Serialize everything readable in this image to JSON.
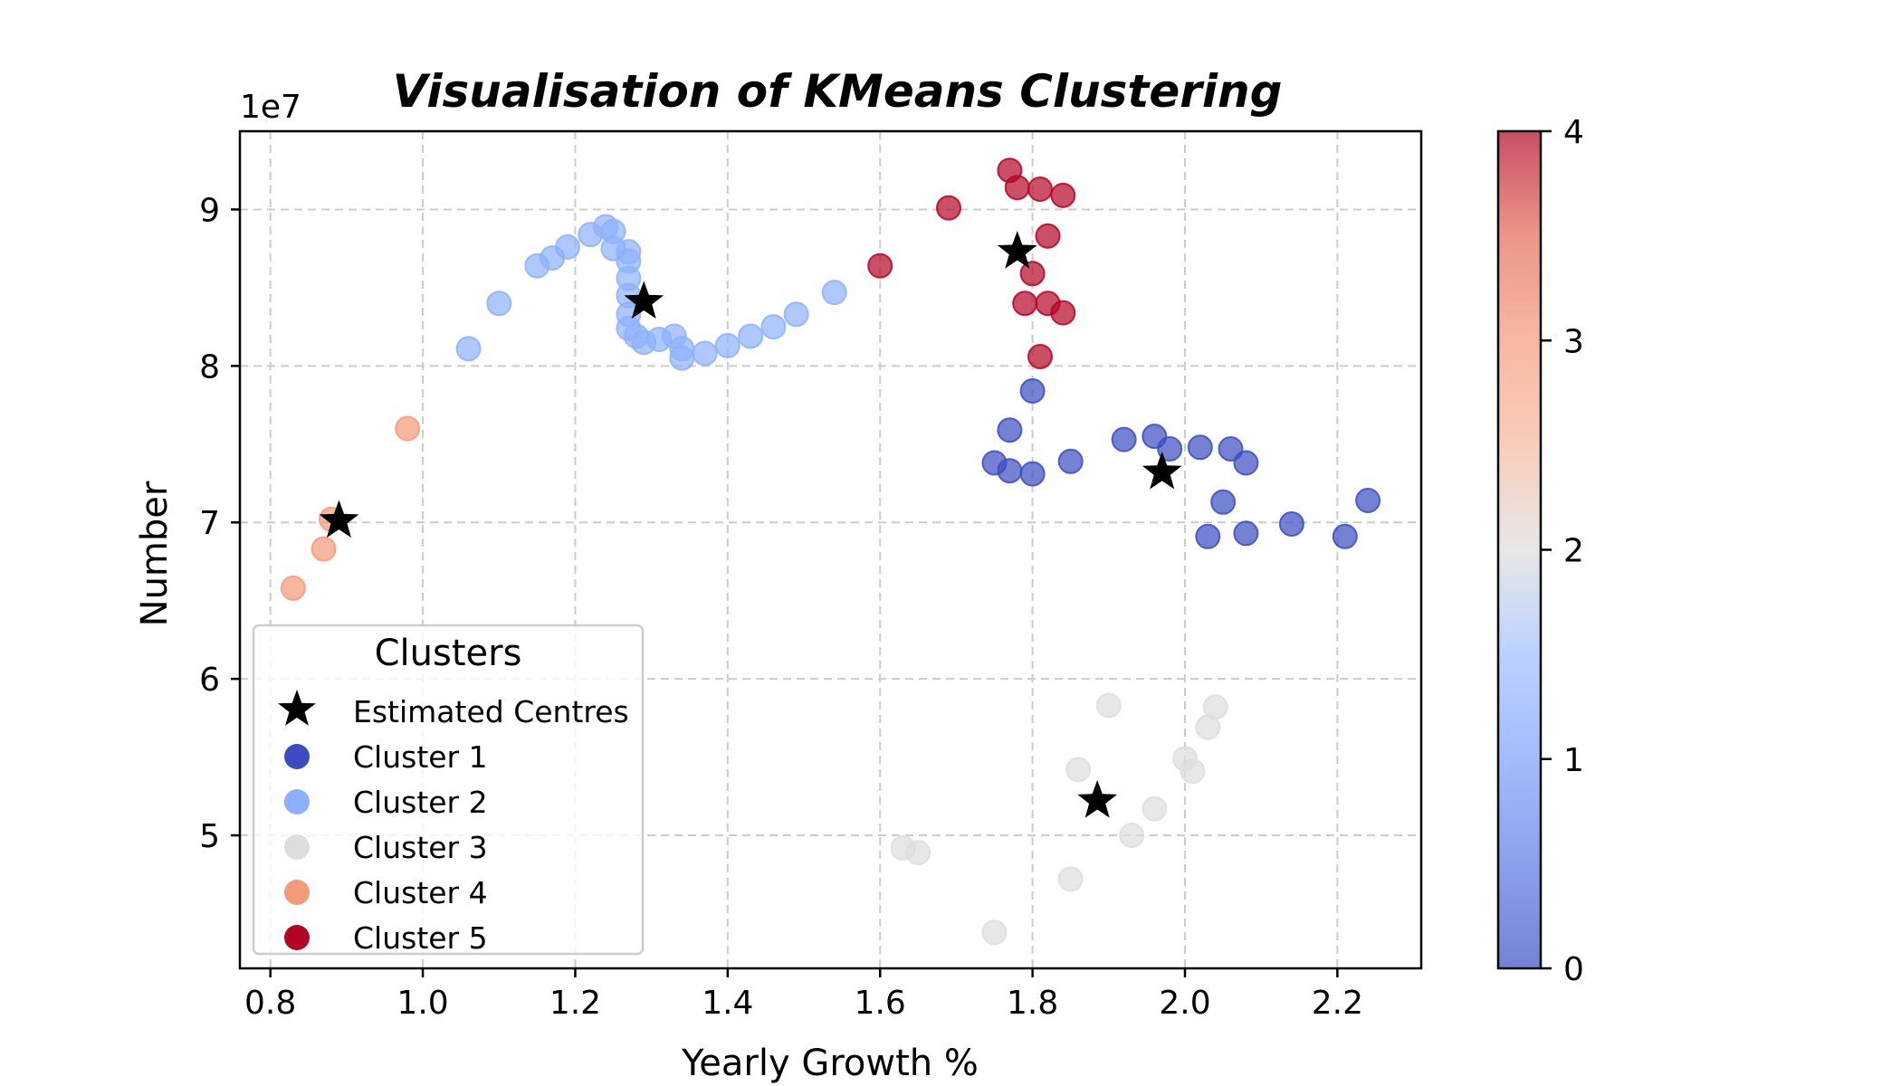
{
  "chart_data": {
    "type": "scatter",
    "title": "Visualisation of KMeans Clustering",
    "xlabel": "Yearly Growth %",
    "ylabel": "Number",
    "y_offset_label": "1e7",
    "xlim": [
      0.76,
      2.31
    ],
    "ylim": [
      4.15,
      9.5
    ],
    "x_ticks": [
      0.8,
      1.0,
      1.2,
      1.4,
      1.6,
      1.8,
      2.0,
      2.2
    ],
    "x_tick_labels": [
      "0.8",
      "1.0",
      "1.2",
      "1.4",
      "1.6",
      "1.8",
      "2.0",
      "2.2"
    ],
    "y_ticks": [
      5,
      6,
      7,
      8,
      9
    ],
    "y_tick_labels": [
      "5",
      "6",
      "7",
      "8",
      "9"
    ],
    "grid": true,
    "grid_style": "dashed",
    "colormap": "coolwarm",
    "colorbar": {
      "range": [
        0,
        4
      ],
      "ticks": [
        0,
        1,
        2,
        3,
        4
      ],
      "tick_labels": [
        "0",
        "1",
        "2",
        "3",
        "4"
      ]
    },
    "series": [
      {
        "name": "Cluster 1",
        "color": "#3b4cc0",
        "points": [
          [
            1.75,
            7.38
          ],
          [
            1.77,
            7.33
          ],
          [
            1.77,
            7.59
          ],
          [
            1.8,
            7.31
          ],
          [
            1.8,
            7.84
          ],
          [
            1.85,
            7.39
          ],
          [
            1.92,
            7.53
          ],
          [
            1.96,
            7.55
          ],
          [
            1.98,
            7.47
          ],
          [
            2.02,
            7.48
          ],
          [
            2.06,
            7.47
          ],
          [
            2.08,
            7.38
          ],
          [
            2.05,
            7.13
          ],
          [
            2.03,
            6.91
          ],
          [
            2.08,
            6.93
          ],
          [
            2.14,
            6.99
          ],
          [
            2.21,
            6.91
          ],
          [
            2.24,
            7.14
          ]
        ]
      },
      {
        "name": "Cluster 2",
        "color": "#8db0fe",
        "points": [
          [
            1.06,
            8.11
          ],
          [
            1.1,
            8.4
          ],
          [
            1.15,
            8.64
          ],
          [
            1.17,
            8.69
          ],
          [
            1.19,
            8.76
          ],
          [
            1.22,
            8.84
          ],
          [
            1.24,
            8.89
          ],
          [
            1.25,
            8.86
          ],
          [
            1.25,
            8.75
          ],
          [
            1.27,
            8.73
          ],
          [
            1.27,
            8.67
          ],
          [
            1.27,
            8.56
          ],
          [
            1.27,
            8.45
          ],
          [
            1.27,
            8.33
          ],
          [
            1.27,
            8.24
          ],
          [
            1.28,
            8.19
          ],
          [
            1.29,
            8.15
          ],
          [
            1.31,
            8.17
          ],
          [
            1.33,
            8.19
          ],
          [
            1.34,
            8.11
          ],
          [
            1.34,
            8.05
          ],
          [
            1.37,
            8.08
          ],
          [
            1.4,
            8.13
          ],
          [
            1.43,
            8.19
          ],
          [
            1.46,
            8.25
          ],
          [
            1.49,
            8.33
          ],
          [
            1.54,
            8.47
          ]
        ]
      },
      {
        "name": "Cluster 3",
        "color": "#dddddd",
        "points": [
          [
            1.9,
            5.83
          ],
          [
            2.04,
            5.82
          ],
          [
            2.03,
            5.69
          ],
          [
            2.0,
            5.49
          ],
          [
            2.01,
            5.41
          ],
          [
            1.86,
            5.42
          ],
          [
            1.96,
            5.17
          ],
          [
            1.93,
            5.0
          ],
          [
            1.63,
            4.92
          ],
          [
            1.65,
            4.89
          ],
          [
            1.85,
            4.72
          ],
          [
            1.75,
            4.38
          ]
        ]
      },
      {
        "name": "Cluster 4",
        "color": "#f49a7b",
        "points": [
          [
            0.98,
            7.6
          ],
          [
            0.88,
            7.02
          ],
          [
            0.87,
            6.83
          ],
          [
            0.83,
            6.58
          ]
        ]
      },
      {
        "name": "Cluster 5",
        "color": "#b40426",
        "points": [
          [
            1.77,
            9.25
          ],
          [
            1.78,
            9.14
          ],
          [
            1.81,
            9.13
          ],
          [
            1.84,
            9.09
          ],
          [
            1.69,
            9.01
          ],
          [
            1.82,
            8.83
          ],
          [
            1.6,
            8.64
          ],
          [
            1.8,
            8.59
          ],
          [
            1.79,
            8.4
          ],
          [
            1.82,
            8.4
          ],
          [
            1.84,
            8.34
          ],
          [
            1.81,
            8.06
          ]
        ]
      }
    ],
    "centres": {
      "name": "Estimated Centres",
      "color": "#000000",
      "points": [
        [
          0.89,
          7.01
        ],
        [
          1.29,
          8.41
        ],
        [
          1.78,
          8.73
        ],
        [
          1.97,
          7.32
        ],
        [
          1.885,
          5.22
        ]
      ]
    },
    "legend": {
      "title": "Clusters",
      "position": "lower-left",
      "entries": [
        "Estimated Centres",
        "Cluster 1",
        "Cluster 2",
        "Cluster 3",
        "Cluster 4",
        "Cluster 5"
      ]
    }
  }
}
